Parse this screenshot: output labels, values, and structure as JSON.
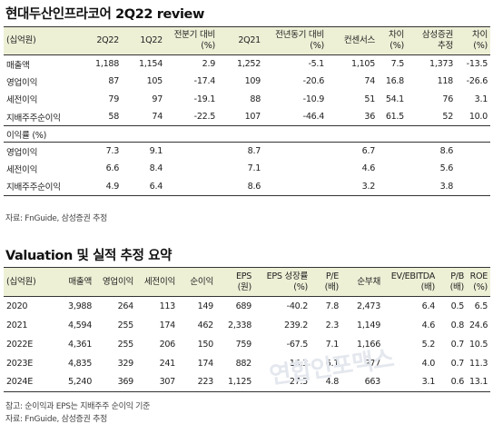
{
  "review": {
    "title": "현대두산인프라코어 2Q22 review",
    "headers": [
      [
        "(십억원)"
      ],
      [
        "2Q22"
      ],
      [
        "1Q22"
      ],
      [
        "전분기 대비",
        "(%)"
      ],
      [
        "2Q21"
      ],
      [
        "전년동기 대비",
        "(%)"
      ],
      [
        "컨센서스"
      ],
      [
        "차이",
        "(%)"
      ],
      [
        "삼성증권",
        "추정"
      ],
      [
        "차이",
        "(%)"
      ]
    ],
    "rows": [
      [
        "매출액",
        "1,188",
        "1,154",
        "2.9",
        "1,252",
        "-5.1",
        "1,105",
        "7.5",
        "1,373",
        "-13.5"
      ],
      [
        "영업이익",
        "87",
        "105",
        "-17.4",
        "109",
        "-20.6",
        "74",
        "16.8",
        "118",
        "-26.6"
      ],
      [
        "세전이익",
        "79",
        "97",
        "-19.1",
        "88",
        "-10.9",
        "51",
        "54.1",
        "76",
        "3.1"
      ],
      [
        "지배주주순이익",
        "58",
        "74",
        "-22.5",
        "107",
        "-46.4",
        "36",
        "61.5",
        "52",
        "10.0"
      ]
    ],
    "margin_label": "이익률 (%)",
    "margin_rows": [
      [
        "영업이익",
        "7.3",
        "9.1",
        "",
        "8.7",
        "",
        "6.7",
        "",
        "8.6",
        ""
      ],
      [
        "세전이익",
        "6.6",
        "8.4",
        "",
        "7.1",
        "",
        "4.6",
        "",
        "5.6",
        ""
      ],
      [
        "지배주주순이익",
        "4.9",
        "6.4",
        "",
        "8.6",
        "",
        "3.2",
        "",
        "3.8",
        ""
      ]
    ],
    "source": "자료: FnGuide, 삼성증권 추정"
  },
  "valuation": {
    "title": "Valuation 및 실적 추정 요약",
    "headers": [
      [
        "(십억원)"
      ],
      [
        "매출액"
      ],
      [
        "영업이익"
      ],
      [
        "세전이익"
      ],
      [
        "순이익"
      ],
      [
        "EPS",
        "(원)"
      ],
      [
        "EPS 성장률",
        "(%)"
      ],
      [
        "P/E",
        "(배)"
      ],
      [
        "순부채"
      ],
      [
        "EV/EBITDA",
        "(배)"
      ],
      [
        "P/B",
        "(배)"
      ],
      [
        "ROE",
        "(%)"
      ]
    ],
    "rows": [
      [
        "2020",
        "3,988",
        "264",
        "113",
        "149",
        "689",
        "-40.2",
        "7.8",
        "2,473",
        "6.4",
        "0.5",
        "6.5"
      ],
      [
        "2021",
        "4,594",
        "255",
        "174",
        "462",
        "2,338",
        "239.2",
        "2.3",
        "1,149",
        "4.6",
        "0.8",
        "24.6"
      ],
      [
        "2022E",
        "4,361",
        "255",
        "206",
        "150",
        "759",
        "-67.5",
        "7.1",
        "1,166",
        "5.2",
        "0.7",
        "10.5"
      ],
      [
        "2023E",
        "4,835",
        "329",
        "241",
        "174",
        "882",
        "16.3",
        "6.1",
        "977",
        "4.0",
        "0.7",
        "11.3"
      ],
      [
        "2024E",
        "5,240",
        "369",
        "307",
        "223",
        "1,125",
        "27.5",
        "4.8",
        "663",
        "3.1",
        "0.6",
        "13.1"
      ]
    ],
    "note": "참고: 순이익과 EPS는 지배주주 순이익 기준",
    "source": "자료: FnGuide, 삼성증권 추정"
  },
  "watermark": "연합인포맥스"
}
